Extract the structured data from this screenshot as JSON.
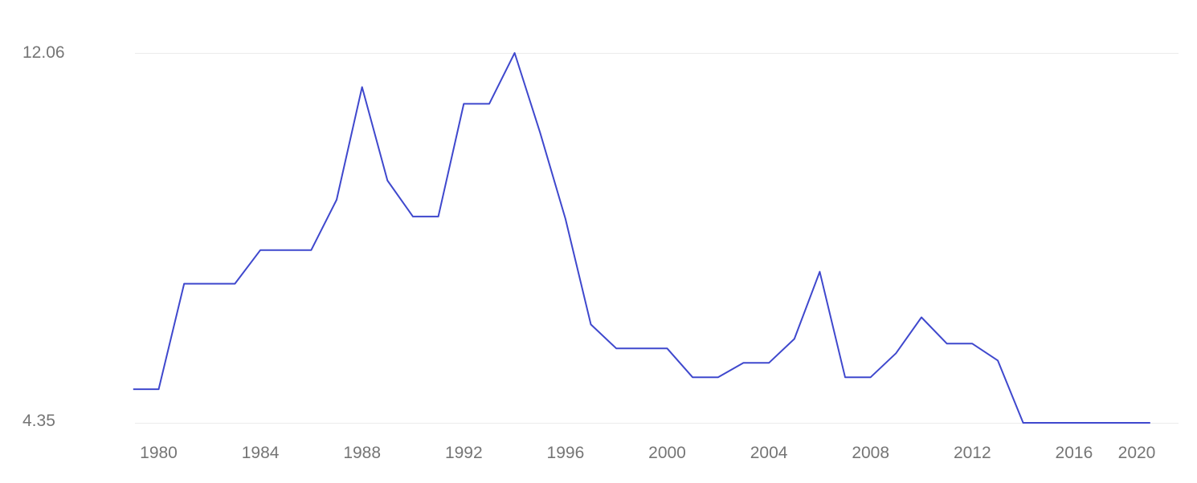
{
  "chart_data": {
    "type": "line",
    "title": "",
    "xlabel": "",
    "ylabel": "",
    "x": [
      1979,
      1980,
      1981,
      1982,
      1983,
      1984,
      1985,
      1986,
      1987,
      1988,
      1989,
      1990,
      1991,
      1992,
      1993,
      1994,
      1995,
      1996,
      1997,
      1998,
      1999,
      2000,
      2001,
      2002,
      2003,
      2004,
      2005,
      2006,
      2007,
      2008,
      2009,
      2010,
      2011,
      2012,
      2013,
      2014,
      2015,
      2016,
      2017,
      2018,
      2019
    ],
    "values": [
      5.05,
      5.05,
      7.25,
      7.25,
      7.25,
      7.95,
      7.95,
      7.95,
      9.0,
      11.35,
      9.4,
      8.65,
      8.65,
      11.0,
      11.0,
      12.06,
      10.4,
      8.6,
      6.4,
      5.9,
      5.9,
      5.9,
      5.3,
      5.3,
      5.6,
      5.6,
      6.1,
      7.5,
      5.3,
      5.3,
      5.8,
      6.55,
      6.0,
      6.0,
      5.65,
      4.35,
      4.35,
      4.35,
      4.35,
      4.35,
      4.35
    ],
    "ylim": [
      4.35,
      12.06
    ],
    "xlim": [
      1979,
      2020
    ],
    "y_tick_labels": [
      "4.35",
      "12.06"
    ],
    "x_tick_labels": [
      "1980",
      "1984",
      "1988",
      "1992",
      "1996",
      "2000",
      "2004",
      "2008",
      "2012",
      "2016",
      "2020"
    ],
    "x_tick_years": [
      1980,
      1984,
      1988,
      1992,
      1996,
      2000,
      2004,
      2008,
      2012,
      2016,
      2020
    ],
    "grid": "horizontal-only",
    "legend": "none",
    "line_color": "#3f48cd",
    "gridline_color": "#ececec",
    "label_color": "#757575",
    "background_color": "#ffffff"
  }
}
